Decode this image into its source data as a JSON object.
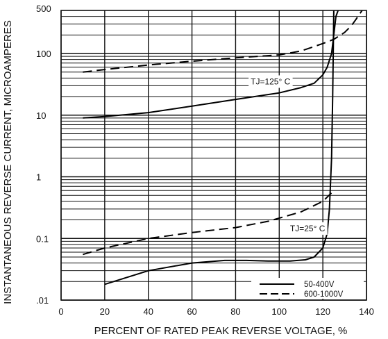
{
  "chart_data": {
    "type": "line",
    "xlabel": "PERCENT OF RATED PEAK REVERSE VOLTAGE, %",
    "ylabel": "INSTANTANEOUS REVERSE CURRENT, MICROAMPERES",
    "xlim": [
      0,
      140
    ],
    "ylim": [
      0.01,
      500
    ],
    "y_scale": "log",
    "grid": true,
    "x_ticks": [
      {
        "value": 0,
        "label": "0"
      },
      {
        "value": 20,
        "label": "20"
      },
      {
        "value": 40,
        "label": "40"
      },
      {
        "value": 60,
        "label": "60"
      },
      {
        "value": 80,
        "label": "80"
      },
      {
        "value": 100,
        "label": "100"
      },
      {
        "value": 120,
        "label": "120"
      },
      {
        "value": 140,
        "label": "140"
      }
    ],
    "y_ticks": [
      {
        "value": 0.01,
        "label": ".01"
      },
      {
        "value": 0.1,
        "label": "0.1"
      },
      {
        "value": 1,
        "label": "1"
      },
      {
        "value": 10,
        "label": "10"
      },
      {
        "value": 100,
        "label": "100"
      },
      {
        "value": 500,
        "label": "500"
      }
    ],
    "legend": {
      "placement": "bottom-right",
      "items": [
        {
          "label": "50-400V",
          "style": "solid"
        },
        {
          "label": "600-1000V",
          "style": "dashed"
        }
      ]
    },
    "annotations": [
      {
        "text": "TJ=125° C",
        "x": 96,
        "y": 35
      },
      {
        "text": "TJ=25° C",
        "x": 113,
        "y": 0.145
      }
    ],
    "series": [
      {
        "group": "TJ=125° C",
        "style": "solid",
        "x": [
          10,
          20,
          40,
          60,
          80,
          100,
          110,
          116,
          120,
          122,
          124,
          125,
          126,
          127
        ],
        "y": [
          9,
          9.5,
          11,
          14,
          18,
          23,
          28,
          33,
          45,
          60,
          100,
          200,
          400,
          500
        ]
      },
      {
        "group": "TJ=125° C",
        "style": "dashed",
        "x": [
          10,
          20,
          40,
          60,
          80,
          100,
          110,
          120,
          125,
          130,
          133,
          135,
          138
        ],
        "y": [
          50,
          55,
          65,
          75,
          85,
          95,
          110,
          145,
          170,
          220,
          280,
          350,
          500
        ]
      },
      {
        "group": "TJ=25° C",
        "style": "solid",
        "x": [
          20,
          40,
          60,
          75,
          85,
          95,
          105,
          112,
          116,
          120,
          122,
          123,
          124,
          124.5,
          125
        ],
        "y": [
          0.018,
          0.03,
          0.04,
          0.044,
          0.044,
          0.043,
          0.043,
          0.045,
          0.05,
          0.07,
          0.12,
          0.3,
          2,
          20,
          500
        ]
      },
      {
        "group": "TJ=25° C",
        "style": "dashed",
        "x": [
          10,
          20,
          40,
          60,
          80,
          95,
          110,
          120,
          124
        ],
        "y": [
          0.055,
          0.07,
          0.1,
          0.125,
          0.15,
          0.19,
          0.27,
          0.4,
          0.55
        ]
      }
    ]
  }
}
